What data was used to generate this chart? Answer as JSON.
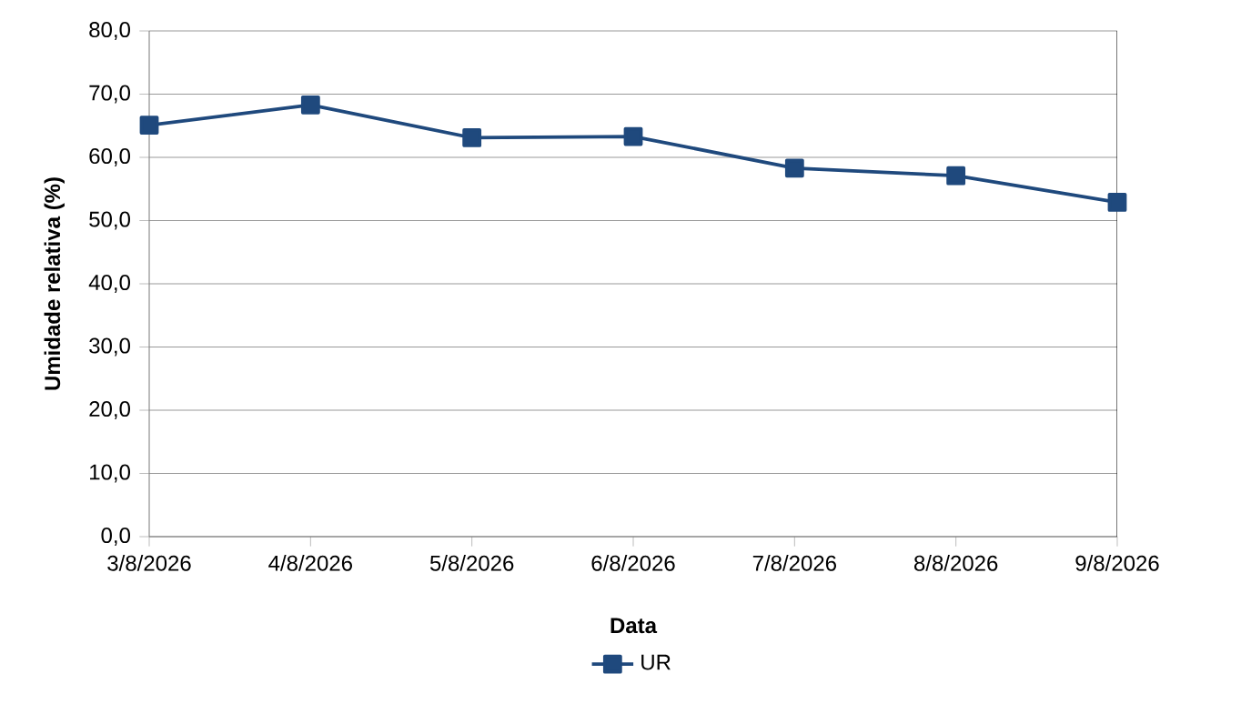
{
  "chart_data": {
    "type": "line",
    "xlabel": "Data",
    "ylabel": "Umidade relativa (%)",
    "categories": [
      "3/8/2026",
      "4/8/2026",
      "5/8/2026",
      "6/8/2026",
      "7/8/2026",
      "8/8/2026",
      "9/8/2026"
    ],
    "series": [
      {
        "name": "UR",
        "color": "#1f497d",
        "values": [
          65.1,
          68.3,
          63.1,
          63.3,
          58.3,
          57.1,
          52.9
        ]
      }
    ],
    "ylim": [
      0,
      80
    ],
    "yticks": [
      {
        "value": 0,
        "label": "0,0"
      },
      {
        "value": 10,
        "label": "10,0"
      },
      {
        "value": 20,
        "label": "20,0"
      },
      {
        "value": 30,
        "label": "30,0"
      },
      {
        "value": 40,
        "label": "40,0"
      },
      {
        "value": 50,
        "label": "50,0"
      },
      {
        "value": 60,
        "label": "60,0"
      },
      {
        "value": 70,
        "label": "70,0"
      },
      {
        "value": 80,
        "label": "80,0"
      }
    ],
    "grid": "y",
    "legend": "bottom",
    "marker": "square",
    "line_style": "solid"
  }
}
